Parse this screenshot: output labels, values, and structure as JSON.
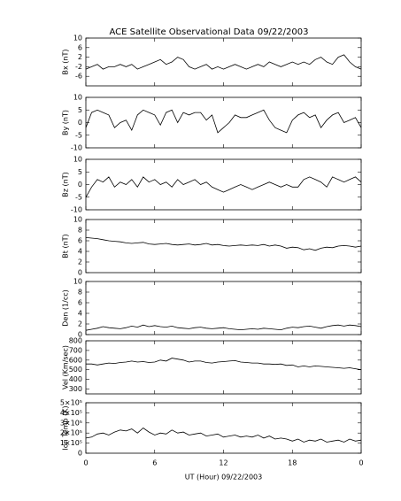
{
  "chart_data": [
    {
      "type": "line",
      "title": "ACE Satellite Observational Data   09/22/2003",
      "ylabel": "Bx (nT)",
      "x": [
        0,
        0.5,
        1,
        1.5,
        2,
        2.5,
        3,
        3.5,
        4,
        4.5,
        5,
        5.5,
        6,
        6.5,
        7,
        7.5,
        8,
        8.5,
        9,
        9.5,
        10,
        10.5,
        11,
        11.5,
        12,
        12.5,
        13,
        13.5,
        14,
        14.5,
        15,
        15.5,
        16,
        16.5,
        17,
        17.5,
        18,
        18.5,
        19,
        19.5,
        20,
        20.5,
        21,
        21.5,
        22,
        22.5,
        23,
        23.5,
        24
      ],
      "values": [
        -3,
        -2,
        -1,
        -3,
        -2,
        -2,
        -1,
        -2,
        -1,
        -3,
        -2,
        -1,
        0,
        1,
        -1,
        0,
        2,
        1,
        -2,
        -3,
        -2,
        -1,
        -3,
        -2,
        -3,
        -2,
        -1,
        -2,
        -3,
        -2,
        -1,
        -2,
        0,
        -1,
        -2,
        -1,
        0,
        -1,
        0,
        -1,
        1,
        2,
        0,
        -1,
        2,
        3,
        0,
        -2,
        -3
      ],
      "color": "#000000",
      "ylim": [
        -10,
        10
      ],
      "yticks": [
        -6,
        -2,
        2,
        6,
        10
      ]
    },
    {
      "type": "line",
      "ylabel": "By (nT)",
      "x": [
        0,
        0.5,
        1,
        1.5,
        2,
        2.5,
        3,
        3.5,
        4,
        4.5,
        5,
        5.5,
        6,
        6.5,
        7,
        7.5,
        8,
        8.5,
        9,
        9.5,
        10,
        10.5,
        11,
        11.5,
        12,
        12.5,
        13,
        13.5,
        14,
        14.5,
        15,
        15.5,
        16,
        16.5,
        17,
        17.5,
        18,
        18.5,
        19,
        19.5,
        20,
        20.5,
        21,
        21.5,
        22,
        22.5,
        23,
        23.5,
        24
      ],
      "values": [
        -2,
        4,
        5,
        4,
        3,
        -2,
        0,
        1,
        -3,
        3,
        5,
        4,
        3,
        -1,
        4,
        5,
        0,
        4,
        3,
        4,
        4,
        1,
        3,
        -4,
        -2,
        0,
        3,
        2,
        2,
        3,
        4,
        5,
        1,
        -2,
        -3,
        -4,
        1,
        3,
        4,
        2,
        3,
        -2,
        1,
        3,
        4,
        0,
        1,
        2,
        -2
      ],
      "color": "#000000",
      "ylim": [
        -10,
        10
      ],
      "yticks": [
        -10,
        -5,
        0,
        5,
        10
      ]
    },
    {
      "type": "line",
      "ylabel": "Bz (nT)",
      "x": [
        0,
        0.5,
        1,
        1.5,
        2,
        2.5,
        3,
        3.5,
        4,
        4.5,
        5,
        5.5,
        6,
        6.5,
        7,
        7.5,
        8,
        8.5,
        9,
        9.5,
        10,
        10.5,
        11,
        11.5,
        12,
        12.5,
        13,
        13.5,
        14,
        14.5,
        15,
        15.5,
        16,
        16.5,
        17,
        17.5,
        18,
        18.5,
        19,
        19.5,
        20,
        20.5,
        21,
        21.5,
        22,
        22.5,
        23,
        23.5,
        24
      ],
      "values": [
        -5,
        -1,
        2,
        1,
        3,
        -1,
        1,
        0,
        2,
        -1,
        3,
        1,
        2,
        0,
        1,
        -1,
        2,
        0,
        1,
        2,
        0,
        1,
        -1,
        -2,
        -3,
        -2,
        -1,
        0,
        -1,
        -2,
        -1,
        0,
        1,
        0,
        -1,
        0,
        -1,
        -1,
        2,
        3,
        2,
        1,
        -1,
        3,
        2,
        1,
        2,
        3,
        1
      ],
      "color": "#000000",
      "ylim": [
        -10,
        10
      ],
      "yticks": [
        -10,
        -5,
        0,
        5,
        10
      ]
    },
    {
      "type": "line",
      "ylabel": "Bt (nT)",
      "x": [
        0,
        0.5,
        1,
        1.5,
        2,
        2.5,
        3,
        3.5,
        4,
        4.5,
        5,
        5.5,
        6,
        6.5,
        7,
        7.5,
        8,
        8.5,
        9,
        9.5,
        10,
        10.5,
        11,
        11.5,
        12,
        12.5,
        13,
        13.5,
        14,
        14.5,
        15,
        15.5,
        16,
        16.5,
        17,
        17.5,
        18,
        18.5,
        19,
        19.5,
        20,
        20.5,
        21,
        21.5,
        22,
        22.5,
        23,
        23.5,
        24
      ],
      "values": [
        6.6,
        6.5,
        6.4,
        6.2,
        6,
        5.9,
        5.8,
        5.6,
        5.5,
        5.6,
        5.7,
        5.4,
        5.3,
        5.4,
        5.5,
        5.3,
        5.2,
        5.3,
        5.4,
        5.2,
        5.3,
        5.5,
        5.2,
        5.3,
        5.1,
        5,
        5.1,
        5.2,
        5.1,
        5.2,
        5.1,
        5.3,
        5,
        5.2,
        5,
        4.6,
        4.8,
        4.7,
        4.3,
        4.5,
        4.2,
        4.6,
        4.8,
        4.7,
        5,
        5.1,
        5,
        4.8,
        5
      ],
      "color": "#000000",
      "ylim": [
        0,
        10
      ],
      "yticks": [
        0,
        2,
        4,
        6,
        8,
        10
      ]
    },
    {
      "type": "line",
      "ylabel": "Den (1/cc)",
      "x": [
        0,
        0.5,
        1,
        1.5,
        2,
        2.5,
        3,
        3.5,
        4,
        4.5,
        5,
        5.5,
        6,
        6.5,
        7,
        7.5,
        8,
        8.5,
        9,
        9.5,
        10,
        10.5,
        11,
        11.5,
        12,
        12.5,
        13,
        13.5,
        14,
        14.5,
        15,
        15.5,
        16,
        16.5,
        17,
        17.5,
        18,
        18.5,
        19,
        19.5,
        20,
        20.5,
        21,
        21.5,
        22,
        22.5,
        23,
        23.5,
        24
      ],
      "values": [
        0.8,
        1,
        1.2,
        1.5,
        1.3,
        1.2,
        1.1,
        1.3,
        1.6,
        1.4,
        1.8,
        1.5,
        1.7,
        1.5,
        1.4,
        1.6,
        1.3,
        1.2,
        1.1,
        1.3,
        1.4,
        1.2,
        1.1,
        1.2,
        1.3,
        1.1,
        1,
        0.9,
        1,
        1.1,
        1,
        1.2,
        1.1,
        1,
        0.9,
        1.2,
        1.4,
        1.3,
        1.5,
        1.6,
        1.4,
        1.2,
        1.5,
        1.7,
        1.8,
        1.6,
        1.8,
        1.7,
        1.5
      ],
      "color": "#000000",
      "ylim": [
        0,
        10
      ],
      "yticks": [
        0,
        2,
        4,
        6,
        8,
        10
      ]
    },
    {
      "type": "line",
      "ylabel": "Vel (Km/sec)",
      "x": [
        0,
        0.5,
        1,
        1.5,
        2,
        2.5,
        3,
        3.5,
        4,
        4.5,
        5,
        5.5,
        6,
        6.5,
        7,
        7.5,
        8,
        8.5,
        9,
        9.5,
        10,
        10.5,
        11,
        11.5,
        12,
        12.5,
        13,
        13.5,
        14,
        14.5,
        15,
        15.5,
        16,
        16.5,
        17,
        17.5,
        18,
        18.5,
        19,
        19.5,
        20,
        20.5,
        21,
        21.5,
        22,
        22.5,
        23,
        23.5,
        24
      ],
      "values": [
        560,
        560,
        550,
        560,
        570,
        565,
        575,
        580,
        590,
        580,
        585,
        575,
        580,
        600,
        590,
        620,
        610,
        600,
        580,
        590,
        590,
        575,
        570,
        580,
        585,
        590,
        595,
        580,
        575,
        570,
        570,
        560,
        560,
        555,
        560,
        545,
        550,
        530,
        540,
        530,
        540,
        535,
        530,
        525,
        520,
        515,
        520,
        510,
        500
      ],
      "color": "#000000",
      "ylim": [
        250,
        800
      ],
      "yticks": [
        300,
        400,
        500,
        600,
        700,
        800
      ]
    },
    {
      "type": "line",
      "ylabel": "Ion Temp (K)",
      "xlabel": "UT (Hour)  09/22/2003",
      "x": [
        0,
        0.5,
        1,
        1.5,
        2,
        2.5,
        3,
        3.5,
        4,
        4.5,
        5,
        5.5,
        6,
        6.5,
        7,
        7.5,
        8,
        8.5,
        9,
        9.5,
        10,
        10.5,
        11,
        11.5,
        12,
        12.5,
        13,
        13.5,
        14,
        14.5,
        15,
        15.5,
        16,
        16.5,
        17,
        17.5,
        18,
        18.5,
        19,
        19.5,
        20,
        20.5,
        21,
        21.5,
        22,
        22.5,
        23,
        23.5,
        24
      ],
      "values": [
        150000,
        160000,
        190000,
        200000,
        180000,
        210000,
        230000,
        220000,
        240000,
        200000,
        250000,
        210000,
        180000,
        200000,
        190000,
        230000,
        200000,
        210000,
        180000,
        190000,
        200000,
        170000,
        180000,
        190000,
        160000,
        170000,
        180000,
        160000,
        170000,
        160000,
        180000,
        150000,
        170000,
        140000,
        150000,
        140000,
        120000,
        140000,
        110000,
        130000,
        120000,
        140000,
        110000,
        120000,
        130000,
        110000,
        140000,
        120000,
        130000
      ],
      "color": "#000000",
      "ylim": [
        0,
        500000
      ],
      "yticks": [
        0,
        {
          "value": 100000,
          "label": "1×10⁵"
        },
        {
          "value": 200000,
          "label": "2×10⁵"
        },
        {
          "value": 300000,
          "label": "3×10⁵"
        },
        {
          "value": 400000,
          "label": "4×10⁵"
        },
        {
          "value": 500000,
          "label": "5×10⁵"
        }
      ],
      "xlim": [
        0,
        24
      ],
      "xticks": [
        0,
        6,
        12,
        18,
        {
          "value": 24,
          "label": "0"
        }
      ]
    }
  ]
}
